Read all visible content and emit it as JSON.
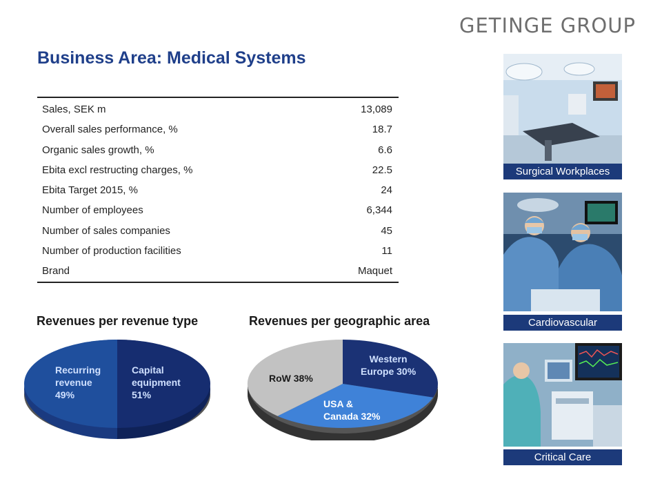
{
  "logo": "GETINGE GROUP",
  "title": "Business Area: Medical Systems",
  "table": [
    {
      "label": "Sales, SEK m",
      "value": "13,089"
    },
    {
      "label": "Overall sales performance, %",
      "value": "18.7"
    },
    {
      "label": "Organic sales growth, %",
      "value": "6.6"
    },
    {
      "label": "Ebita excl restructing charges, %",
      "value": "22.5"
    },
    {
      "label": "Ebita Target 2015, %",
      "value": "24"
    },
    {
      "label": "Number of employees",
      "value": "6,344"
    },
    {
      "label": "Number of sales companies",
      "value": "45"
    },
    {
      "label": "Number of production facilities",
      "value": "11"
    },
    {
      "label": "Brand",
      "value": "Maquet"
    }
  ],
  "revenue_type": {
    "heading": "Revenues per revenue type",
    "slices": [
      {
        "line1": "Recurring",
        "line2": "revenue",
        "line3": "49%",
        "share": 49,
        "color": "#1f4f9d"
      },
      {
        "line1": "Capital",
        "line2": "equipment",
        "line3": "51%",
        "share": 51,
        "color": "#162d70"
      }
    ]
  },
  "revenue_geo": {
    "heading": "Revenues per geographic area",
    "slices": [
      {
        "line1": "Western",
        "line2": "Europe 30%",
        "share": 30,
        "color": "#1b3275"
      },
      {
        "line1": "USA &",
        "line2": "Canada 32%",
        "share": 32,
        "color": "#3f82d8"
      },
      {
        "line1": "RoW 38%",
        "line2": "",
        "share": 38,
        "color": "#c2c2c2"
      }
    ]
  },
  "photos": [
    {
      "caption": "Surgical Workplaces",
      "icon": "operating-room-photo"
    },
    {
      "caption": "Cardiovascular",
      "icon": "surgeons-photo"
    },
    {
      "caption": "Critical Care",
      "icon": "icu-photo"
    }
  ]
}
